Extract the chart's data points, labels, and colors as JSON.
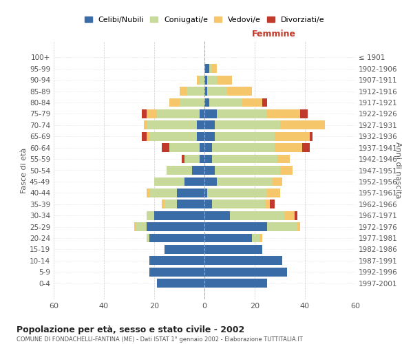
{
  "age_groups": [
    "0-4",
    "5-9",
    "10-14",
    "15-19",
    "20-24",
    "25-29",
    "30-34",
    "35-39",
    "40-44",
    "45-49",
    "50-54",
    "55-59",
    "60-64",
    "65-69",
    "70-74",
    "75-79",
    "80-84",
    "85-89",
    "90-94",
    "95-99",
    "100+"
  ],
  "birth_years": [
    "1997-2001",
    "1992-1996",
    "1987-1991",
    "1982-1986",
    "1977-1981",
    "1972-1976",
    "1967-1971",
    "1962-1966",
    "1957-1961",
    "1952-1956",
    "1947-1951",
    "1942-1946",
    "1937-1941",
    "1932-1936",
    "1927-1931",
    "1922-1926",
    "1917-1921",
    "1912-1916",
    "1907-1911",
    "1902-1906",
    "≤ 1901"
  ],
  "males": {
    "celibe": [
      19,
      22,
      22,
      16,
      22,
      23,
      20,
      11,
      11,
      8,
      5,
      2,
      2,
      3,
      3,
      2,
      0,
      0,
      0,
      0,
      0
    ],
    "coniugato": [
      0,
      0,
      0,
      0,
      1,
      4,
      3,
      5,
      11,
      12,
      10,
      6,
      12,
      19,
      20,
      17,
      10,
      7,
      2,
      0,
      0
    ],
    "vedovo": [
      0,
      0,
      0,
      0,
      0,
      1,
      0,
      1,
      1,
      0,
      0,
      0,
      0,
      1,
      1,
      4,
      4,
      3,
      1,
      0,
      0
    ],
    "divorziato": [
      0,
      0,
      0,
      0,
      0,
      0,
      0,
      0,
      0,
      0,
      0,
      1,
      3,
      2,
      0,
      2,
      0,
      0,
      0,
      0,
      0
    ]
  },
  "females": {
    "nubile": [
      25,
      33,
      31,
      23,
      19,
      25,
      10,
      3,
      1,
      5,
      4,
      3,
      3,
      4,
      4,
      5,
      2,
      1,
      1,
      2,
      0
    ],
    "coniugata": [
      0,
      0,
      0,
      0,
      3,
      12,
      22,
      21,
      24,
      22,
      26,
      26,
      25,
      24,
      26,
      20,
      13,
      8,
      4,
      1,
      0
    ],
    "vedova": [
      0,
      0,
      0,
      0,
      1,
      1,
      4,
      2,
      5,
      4,
      5,
      5,
      11,
      14,
      18,
      13,
      8,
      10,
      6,
      2,
      0
    ],
    "divorziata": [
      0,
      0,
      0,
      0,
      0,
      0,
      1,
      2,
      0,
      0,
      0,
      0,
      3,
      1,
      0,
      3,
      2,
      0,
      0,
      0,
      0
    ]
  },
  "colors": {
    "celibe": "#3a6ca8",
    "coniugato": "#c8da9a",
    "vedovo": "#f5c76a",
    "divorziato": "#c0392b"
  },
  "xlim": 60,
  "title": "Popolazione per età, sesso e stato civile - 2002",
  "subtitle": "COMUNE DI FONDACHELLI-FANTINA (ME) - Dati ISTAT 1° gennaio 2002 - Elaborazione TUTTITALIA.IT",
  "xlabel_right": "Femmine",
  "ylabel_left": "Fasce di età",
  "ylabel_right": "Anni di nascita",
  "legend_labels": [
    "Celibi/Nubili",
    "Coniugati/e",
    "Vedovi/e",
    "Divorziati/e"
  ],
  "bg_color": "#ffffff",
  "grid_color": "#cccccc"
}
